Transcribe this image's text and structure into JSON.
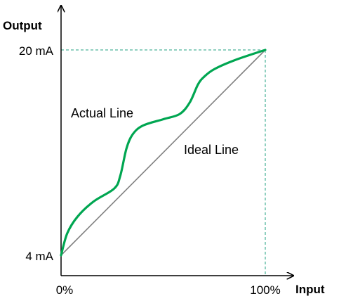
{
  "chart_data": {
    "type": "line",
    "xlabel": "Input",
    "ylabel": "Output",
    "xlim": [
      0,
      100
    ],
    "ylim": [
      4,
      20
    ],
    "x_unit": "%",
    "y_unit": "mA",
    "x_tick_labels": [
      "0%",
      "100%"
    ],
    "y_tick_labels": [
      "4 mA",
      "20 mA"
    ],
    "grid": false,
    "series": [
      {
        "name": "Ideal Line",
        "color": "#808080",
        "x": [
          0,
          100
        ],
        "y": [
          4,
          20
        ]
      },
      {
        "name": "Actual Line",
        "color": "#00A651",
        "x": [
          0,
          3,
          8,
          16,
          26,
          29,
          32,
          35,
          40,
          50,
          58,
          63,
          67,
          70,
          75,
          85,
          100
        ],
        "y": [
          4,
          5.7,
          7,
          8.2,
          9.2,
          10.2,
          12.3,
          13.4,
          14.1,
          14.6,
          15.0,
          15.9,
          17.3,
          17.9,
          18.5,
          19.2,
          20
        ]
      }
    ],
    "annotations": [
      {
        "text": "Actual Line",
        "series": "Actual Line",
        "color": "#00A651"
      },
      {
        "text": "Ideal Line",
        "series": "Ideal Line",
        "color": "#000000"
      }
    ],
    "guide_color": "#20A080"
  }
}
